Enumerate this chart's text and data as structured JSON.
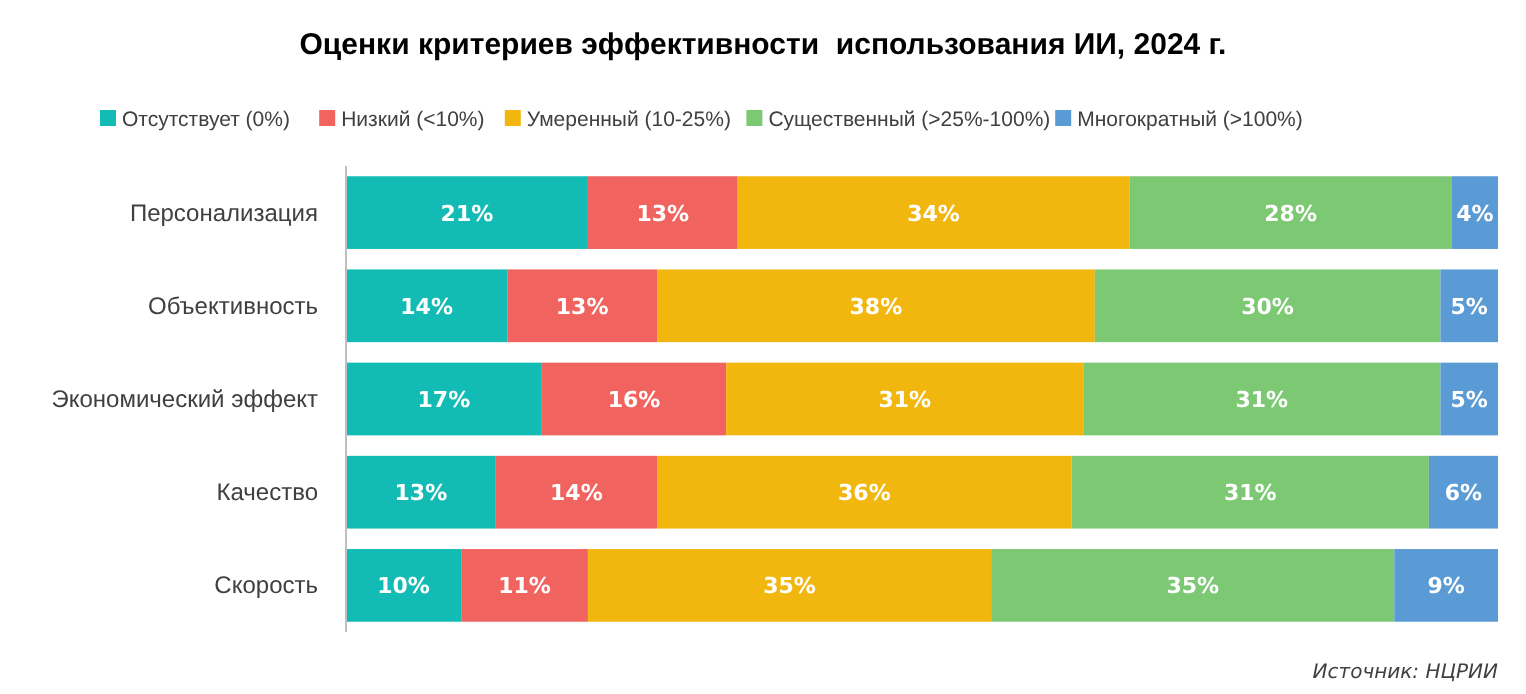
{
  "chart_data": {
    "type": "bar",
    "orientation": "horizontal",
    "stacked": true,
    "title": "Оценки критериев эффективности  использования ИИ, 2024 г.",
    "categories": [
      "Персонализация",
      "Объективность",
      "Экономический эффект",
      "Качество",
      "Скорость"
    ],
    "series": [
      {
        "name": "Отсутствует (0%)",
        "color": "#12bcb4",
        "values": [
          21,
          14,
          17,
          13,
          10
        ],
        "value_labels": [
          "21%",
          "14%",
          "17%",
          "13%",
          "10%"
        ]
      },
      {
        "name": "Низкий (<10%)",
        "color": "#f0635f",
        "values": [
          13,
          13,
          16,
          14,
          11
        ],
        "value_labels": [
          "13%",
          "13%",
          "16%",
          "14%",
          "11%"
        ]
      },
      {
        "name": "Умеренный (10-25%)",
        "color": "#f2b70f",
        "values": [
          34,
          38,
          31,
          36,
          35
        ],
        "value_labels": [
          "34%",
          "38%",
          "31%",
          "36%",
          "35%"
        ]
      },
      {
        "name": "Существенный (>25%-100%)",
        "color": "#7dc873",
        "values": [
          28,
          30,
          31,
          31,
          35
        ],
        "value_labels": [
          "28%",
          "30%",
          "31%",
          "31%",
          "35%"
        ]
      },
      {
        "name": "Многократный (>100%)",
        "color": "#5b9bd5",
        "values": [
          4,
          5,
          5,
          6,
          9
        ],
        "value_labels": [
          "4%",
          "5%",
          "5%",
          "6%",
          "9%"
        ]
      }
    ],
    "tick_labels": "y",
    "legend": "top",
    "annotations": [
      "Источник: НЦРИИ"
    ]
  }
}
